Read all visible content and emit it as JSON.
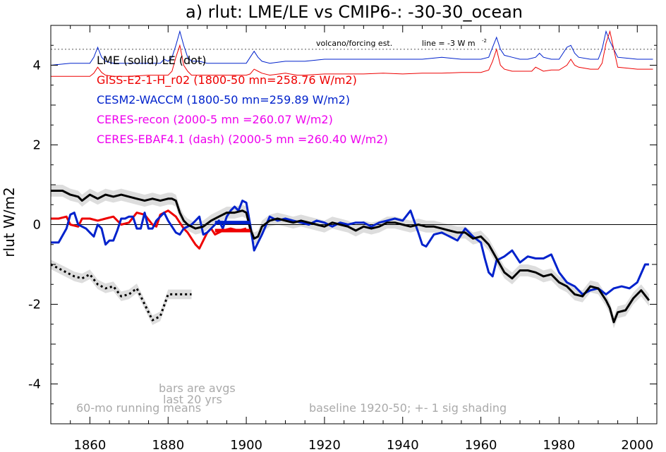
{
  "chart_data": {
    "type": "line",
    "title": "a) rlut: LME/LE vs CMIP6-: -30-30_ocean",
    "ylabel": "rlut W/m2",
    "xlabel": "",
    "xlim": [
      1850,
      2005
    ],
    "ylim": [
      -5,
      5
    ],
    "x_ticks": [
      1860,
      1880,
      1900,
      1920,
      1940,
      1960,
      1980,
      2000
    ],
    "y_ticks": [
      -4,
      -2,
      0,
      2,
      4
    ],
    "colors": {
      "black": "#000000",
      "red": "#ee0000",
      "blue": "#0022cc",
      "magenta": "#ee00ee",
      "gray": "#aaaaaa",
      "shade": "#dddddd"
    },
    "legend": [
      {
        "text": "LME (solid)   LE (dot)",
        "color": "#000000"
      },
      {
        "text": "GISS-E2-1-H_r02 (1800-50 mn=258.76 W/m2)",
        "color": "#ee0000"
      },
      {
        "text": "CESM2-WACCM (1800-50 mn=259.89 W/m2)",
        "color": "#0022cc"
      },
      {
        "text": "CERES-recon (2000-5 mn =260.07 W/m2)",
        "color": "#ee00ee"
      },
      {
        "text": "CERES-EBAF4.1 (dash) (2000-5 mn =260.40 W/m2)",
        "color": "#ee00ee"
      }
    ],
    "annotations": {
      "volcano": "volcano/forcing est.",
      "line_note": "line = -3 W m",
      "line_note_sup": "-2",
      "bars_note_1": "bars are avgs",
      "bars_note_2": "last 20 yrs",
      "running_means": "60-mo running means",
      "baseline": "baseline 1920-50; +- 1 sig shading"
    },
    "dotted_reference_y": 4.4,
    "series": [
      {
        "name": "LME (solid)",
        "color": "#000000",
        "style": "solid",
        "x": [
          1850,
          1853,
          1855,
          1857,
          1858,
          1860,
          1862,
          1864,
          1866,
          1868,
          1870,
          1872,
          1874,
          1876,
          1878,
          1880,
          1881,
          1882,
          1883,
          1884,
          1885,
          1887,
          1889,
          1891,
          1893,
          1895,
          1897,
          1899,
          1900,
          1901,
          1902,
          1903,
          1904,
          1906,
          1908,
          1910,
          1912,
          1914,
          1916,
          1918,
          1920,
          1922,
          1924,
          1926,
          1928,
          1930,
          1932,
          1934,
          1936,
          1938,
          1940,
          1942,
          1944,
          1946,
          1948,
          1950,
          1952,
          1954,
          1956,
          1958,
          1960,
          1962,
          1964,
          1966,
          1968,
          1970,
          1972,
          1974,
          1976,
          1978,
          1980,
          1982,
          1984,
          1986,
          1988,
          1990,
          1992,
          1993,
          1994,
          1995,
          1997,
          1999,
          2001,
          2003
        ],
        "values": [
          0.85,
          0.85,
          0.75,
          0.7,
          0.6,
          0.75,
          0.65,
          0.75,
          0.7,
          0.75,
          0.7,
          0.65,
          0.6,
          0.65,
          0.6,
          0.65,
          0.65,
          0.6,
          0.3,
          0.1,
          0.0,
          -0.1,
          -0.05,
          0.1,
          0.2,
          0.3,
          0.3,
          0.35,
          0.3,
          -0.1,
          -0.35,
          -0.3,
          -0.05,
          0.1,
          0.15,
          0.1,
          0.05,
          0.1,
          0.05,
          0.0,
          -0.05,
          0.05,
          0.0,
          -0.05,
          -0.15,
          -0.05,
          -0.1,
          -0.05,
          0.05,
          0.05,
          0.0,
          -0.05,
          0.0,
          -0.05,
          -0.05,
          -0.1,
          -0.15,
          -0.2,
          -0.2,
          -0.35,
          -0.3,
          -0.5,
          -0.85,
          -1.2,
          -1.35,
          -1.15,
          -1.15,
          -1.2,
          -1.3,
          -1.25,
          -1.45,
          -1.55,
          -1.75,
          -1.8,
          -1.55,
          -1.6,
          -1.9,
          -2.1,
          -2.45,
          -2.2,
          -2.15,
          -1.85,
          -1.65,
          -1.9
        ],
        "sigma": 0.15
      },
      {
        "name": "LE (dot)",
        "color": "#000000",
        "style": "dotted",
        "x": [
          1850,
          1852,
          1854,
          1856,
          1858,
          1860,
          1862,
          1864,
          1866,
          1868,
          1870,
          1872,
          1874,
          1876,
          1878,
          1880,
          1882,
          1884,
          1886
        ],
        "values": [
          -1.0,
          -1.1,
          -1.2,
          -1.3,
          -1.35,
          -1.25,
          -1.5,
          -1.6,
          -1.55,
          -1.8,
          -1.75,
          -1.6,
          -2.0,
          -2.4,
          -2.3,
          -1.75,
          -1.75,
          -1.75,
          -1.75
        ],
        "sigma": 0.12
      },
      {
        "name": "GISS-E2-1-H_r02",
        "color": "#ee0000",
        "style": "solid",
        "x": [
          1850,
          1852,
          1854,
          1855,
          1857,
          1858,
          1860,
          1862,
          1864,
          1866,
          1868,
          1870,
          1872,
          1874,
          1876,
          1877,
          1878,
          1880,
          1882,
          1884,
          1885,
          1886,
          1887,
          1888,
          1890,
          1891,
          1892,
          1894,
          1896,
          1898,
          1900
        ],
        "values": [
          0.15,
          0.15,
          0.2,
          0.0,
          -0.05,
          0.15,
          0.15,
          0.1,
          0.15,
          0.2,
          0.0,
          0.05,
          0.3,
          0.25,
          0.0,
          -0.05,
          0.25,
          0.35,
          0.2,
          -0.1,
          -0.2,
          -0.35,
          -0.5,
          -0.6,
          -0.2,
          -0.1,
          -0.25,
          -0.15,
          -0.1,
          -0.15,
          -0.1
        ]
      },
      {
        "name": "CESM2-WACCM",
        "color": "#0022cc",
        "style": "solid",
        "x": [
          1850,
          1851,
          1852,
          1854,
          1855,
          1856,
          1857,
          1858,
          1859,
          1860,
          1861,
          1862,
          1863,
          1864,
          1865,
          1866,
          1867,
          1868,
          1869,
          1870,
          1871,
          1872,
          1873,
          1874,
          1875,
          1876,
          1877,
          1878,
          1879,
          1880,
          1882,
          1883,
          1884,
          1886,
          1887,
          1888,
          1889,
          1890,
          1891,
          1892,
          1893,
          1894,
          1895,
          1896,
          1897,
          1898,
          1899,
          1900,
          1901,
          1902,
          1904,
          1906,
          1908,
          1910,
          1912,
          1914,
          1916,
          1918,
          1920,
          1922,
          1924,
          1926,
          1928,
          1930,
          1932,
          1934,
          1936,
          1938,
          1940,
          1942,
          1944,
          1945,
          1946,
          1948,
          1950,
          1952,
          1954,
          1956,
          1958,
          1960,
          1961,
          1962,
          1963,
          1964,
          1966,
          1968,
          1970,
          1972,
          1974,
          1976,
          1978,
          1980,
          1982,
          1984,
          1986,
          1988,
          1990,
          1992,
          1994,
          1996,
          1998,
          2000,
          2002,
          2003
        ],
        "values": [
          -0.45,
          -0.45,
          -0.45,
          -0.1,
          0.25,
          0.3,
          0.0,
          -0.05,
          -0.1,
          -0.2,
          -0.3,
          0.0,
          -0.1,
          -0.5,
          -0.4,
          -0.4,
          -0.15,
          0.15,
          0.15,
          0.2,
          0.2,
          -0.1,
          -0.1,
          0.3,
          -0.1,
          -0.1,
          0.1,
          0.2,
          0.3,
          0.1,
          -0.2,
          -0.25,
          -0.1,
          0.0,
          0.1,
          0.2,
          -0.25,
          -0.2,
          -0.1,
          0.0,
          0.1,
          -0.1,
          0.2,
          0.35,
          0.45,
          0.35,
          0.6,
          0.55,
          0.0,
          -0.65,
          -0.25,
          0.2,
          0.1,
          0.15,
          0.1,
          0.05,
          0.0,
          0.1,
          0.05,
          -0.05,
          0.05,
          0.0,
          0.05,
          0.05,
          -0.05,
          0.05,
          0.1,
          0.15,
          0.1,
          0.35,
          -0.2,
          -0.5,
          -0.55,
          -0.25,
          -0.2,
          -0.3,
          -0.4,
          -0.1,
          -0.3,
          -0.45,
          -0.85,
          -1.2,
          -1.3,
          -0.9,
          -0.8,
          -0.65,
          -0.95,
          -0.8,
          -0.85,
          -0.85,
          -0.75,
          -1.2,
          -1.45,
          -1.55,
          -1.75,
          -1.65,
          -1.6,
          -1.75,
          -1.6,
          -1.55,
          -1.6,
          -1.45,
          -1.0,
          -1.0
        ]
      }
    ],
    "bars": [
      {
        "name": "CESM2-WACCM avg",
        "color": "#0022cc",
        "x0": 1892,
        "x1": 1901,
        "y": 0.05
      },
      {
        "name": "GISS-E2-1-H_r02 avg",
        "color": "#ee0000",
        "x0": 1892,
        "x1": 1901,
        "y": -0.15
      }
    ],
    "forcing_lines": [
      {
        "name": "CESM2-WACCM forcing",
        "color": "#0022cc",
        "x": [
          1850,
          1855,
          1860,
          1861,
          1862,
          1863,
          1864,
          1866,
          1870,
          1875,
          1878,
          1879,
          1880,
          1881,
          1882,
          1883,
          1884,
          1885,
          1886,
          1888,
          1890,
          1895,
          1900,
          1901,
          1902,
          1903,
          1904,
          1906,
          1910,
          1915,
          1920,
          1925,
          1930,
          1935,
          1940,
          1945,
          1950,
          1955,
          1960,
          1962,
          1963,
          1964,
          1965,
          1966,
          1968,
          1970,
          1972,
          1974,
          1975,
          1976,
          1978,
          1980,
          1982,
          1983,
          1984,
          1985,
          1988,
          1990,
          1991,
          1992,
          1993,
          1995,
          2000,
          2004
        ],
        "values": [
          4.0,
          4.05,
          4.05,
          4.2,
          4.45,
          4.2,
          4.1,
          4.05,
          4.05,
          4.05,
          4.05,
          4.15,
          4.1,
          4.2,
          4.5,
          4.85,
          4.5,
          4.2,
          4.1,
          4.1,
          4.05,
          4.05,
          4.05,
          4.2,
          4.35,
          4.2,
          4.1,
          4.05,
          4.1,
          4.1,
          4.15,
          4.15,
          4.15,
          4.15,
          4.15,
          4.15,
          4.2,
          4.15,
          4.15,
          4.2,
          4.45,
          4.7,
          4.4,
          4.25,
          4.2,
          4.15,
          4.15,
          4.2,
          4.3,
          4.2,
          4.15,
          4.15,
          4.45,
          4.5,
          4.3,
          4.2,
          4.15,
          4.15,
          4.4,
          4.85,
          4.6,
          4.2,
          4.15,
          4.15
        ]
      },
      {
        "name": "GISS-E2-1-H forcing",
        "color": "#ee0000",
        "x": [
          1850,
          1855,
          1860,
          1861,
          1862,
          1863,
          1864,
          1866,
          1870,
          1875,
          1880,
          1881,
          1882,
          1883,
          1884,
          1885,
          1886,
          1888,
          1890,
          1895,
          1900,
          1901,
          1902,
          1903,
          1904,
          1906,
          1910,
          1913,
          1915,
          1920,
          1925,
          1930,
          1935,
          1940,
          1945,
          1950,
          1955,
          1960,
          1962,
          1963,
          1964,
          1965,
          1966,
          1968,
          1970,
          1973,
          1974,
          1975,
          1976,
          1978,
          1980,
          1982,
          1983,
          1984,
          1985,
          1988,
          1990,
          1991,
          1992,
          1993,
          1994,
          1995,
          2000,
          2004
        ],
        "values": [
          3.72,
          3.72,
          3.72,
          3.8,
          3.95,
          3.82,
          3.75,
          3.72,
          3.72,
          3.75,
          3.75,
          3.85,
          4.2,
          4.5,
          4.0,
          3.85,
          3.75,
          3.75,
          3.75,
          3.75,
          3.75,
          3.78,
          3.9,
          3.85,
          3.8,
          3.75,
          3.8,
          3.75,
          3.75,
          3.78,
          3.78,
          3.78,
          3.8,
          3.78,
          3.8,
          3.8,
          3.82,
          3.82,
          3.88,
          4.1,
          4.4,
          4.0,
          3.9,
          3.85,
          3.85,
          3.85,
          3.95,
          3.9,
          3.85,
          3.88,
          3.88,
          4.0,
          4.15,
          4.0,
          3.95,
          3.9,
          3.9,
          4.05,
          4.55,
          4.85,
          4.4,
          3.95,
          3.9,
          3.9
        ]
      }
    ]
  }
}
